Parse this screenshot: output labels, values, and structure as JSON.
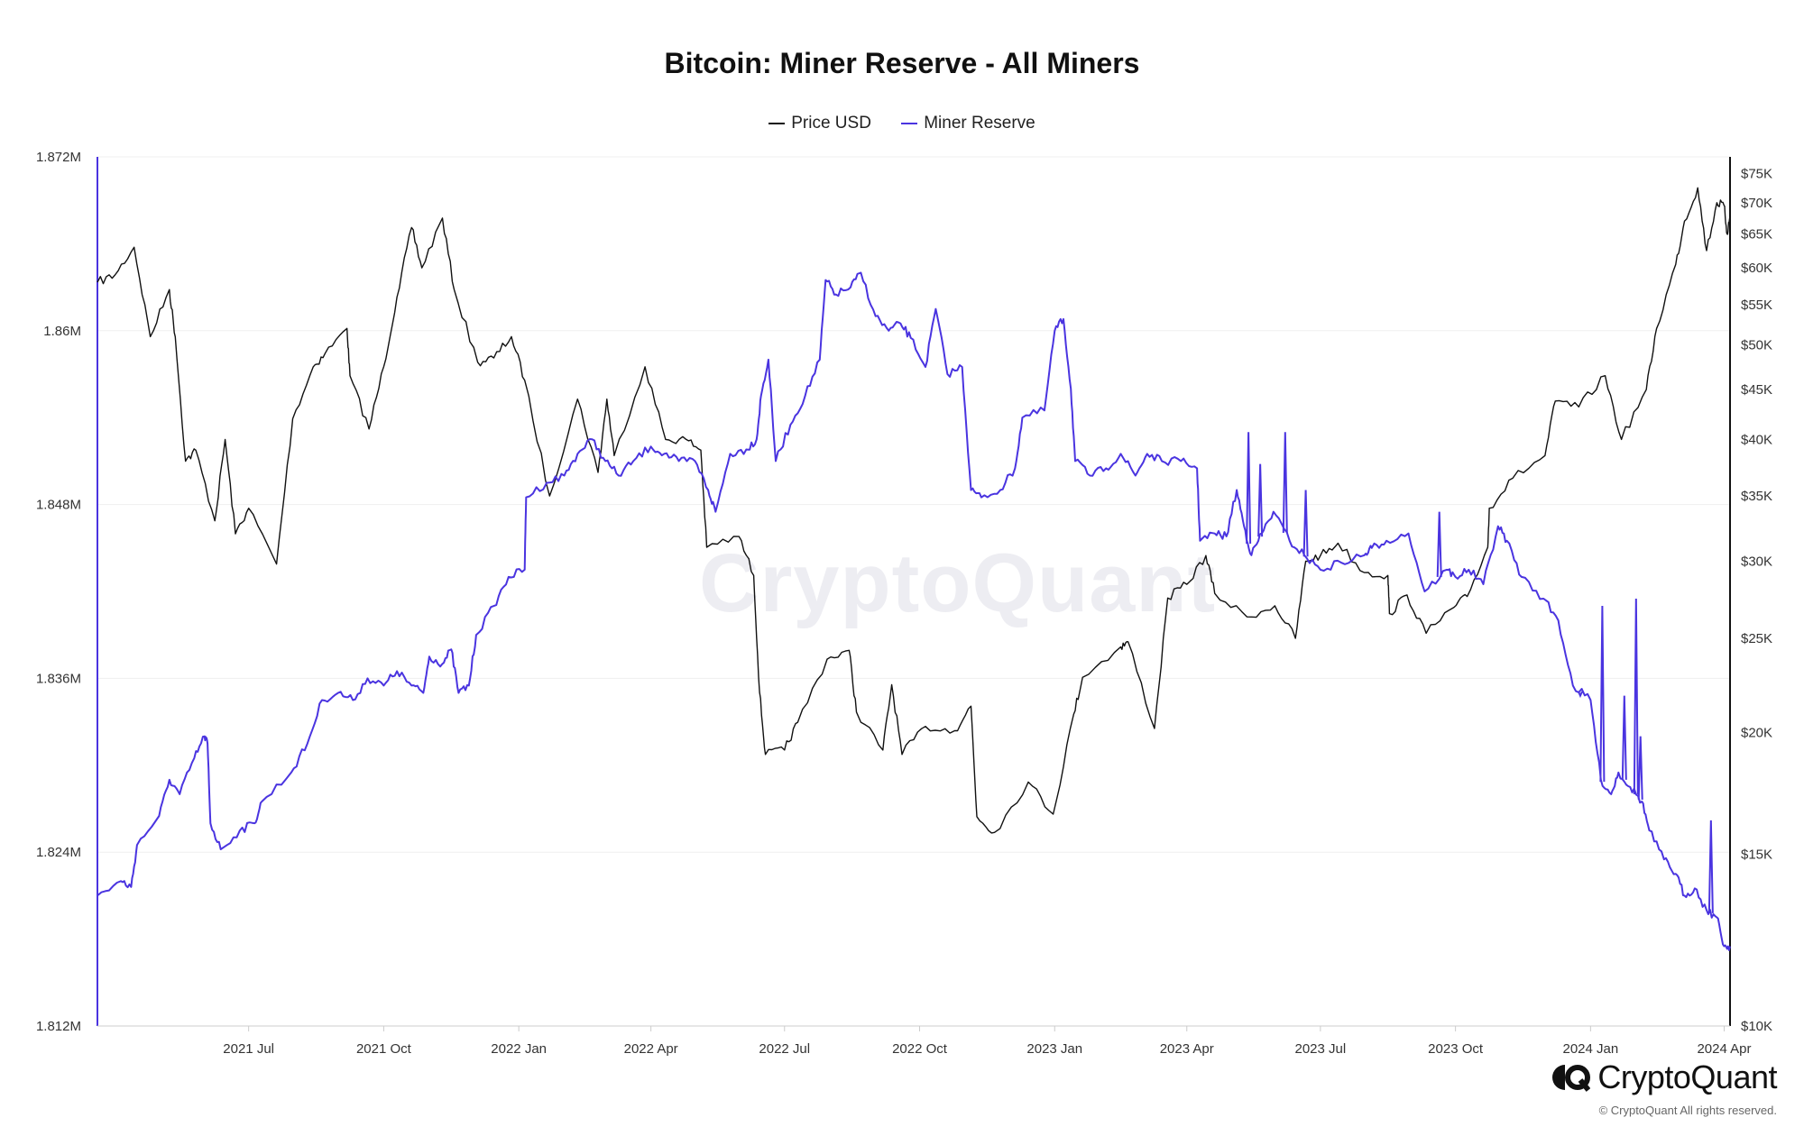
{
  "page": {
    "copyright": "© CryptoQuant All rights reserved."
  },
  "brand": {
    "name": "CryptoQuant",
    "watermark": "CryptoQuant"
  },
  "colors": {
    "price": "#111111",
    "reserve": "#4a34e0",
    "grid": "#efefef",
    "axis": "#cccccc"
  },
  "chart_data": {
    "type": "line",
    "title": "Bitcoin: Miner Reserve - All Miners",
    "legend": {
      "position": "top-center",
      "entries": [
        "Price USD",
        "Miner Reserve"
      ]
    },
    "grid": true,
    "x_axis": {
      "type": "date",
      "range": [
        "2021-03-20",
        "2024-04-05"
      ],
      "ticks": [
        "2021 Jul",
        "2021 Oct",
        "2022 Jan",
        "2022 Apr",
        "2022 Jul",
        "2022 Oct",
        "2023 Jan",
        "2023 Apr",
        "2023 Jul",
        "2023 Oct",
        "2024 Jan",
        "2024 Apr"
      ],
      "tick_dates": [
        "2021-07-01",
        "2021-10-01",
        "2022-01-01",
        "2022-04-01",
        "2022-07-01",
        "2022-10-01",
        "2023-01-01",
        "2023-04-01",
        "2023-07-01",
        "2023-10-01",
        "2024-01-01",
        "2024-04-01"
      ]
    },
    "y_left": {
      "label": "Miner Reserve",
      "range": [
        1812000,
        1872000
      ],
      "ticks": [
        1812000,
        1824000,
        1836000,
        1848000,
        1860000,
        1872000
      ],
      "tick_labels": [
        "1.812M",
        "1.824M",
        "1.836M",
        "1.848M",
        "1.86M",
        "1.872M"
      ]
    },
    "y_right": {
      "label": "Price USD",
      "scale": "log",
      "range": [
        10000,
        78000
      ],
      "ticks": [
        10000,
        15000,
        20000,
        25000,
        30000,
        35000,
        40000,
        45000,
        50000,
        55000,
        60000,
        65000,
        70000,
        75000
      ],
      "tick_labels": [
        "$10K",
        "$15K",
        "$20K",
        "$25K",
        "$30K",
        "$35K",
        "$40K",
        "$45K",
        "$50K",
        "$55K",
        "$60K",
        "$65K",
        "$70K",
        "$75K"
      ]
    },
    "series": [
      {
        "name": "Price USD",
        "axis": "right",
        "points": [
          [
            "2021-03-20",
            58000
          ],
          [
            "2021-04-01",
            59000
          ],
          [
            "2021-04-14",
            63000
          ],
          [
            "2021-04-25",
            51000
          ],
          [
            "2021-05-08",
            57000
          ],
          [
            "2021-05-12",
            51000
          ],
          [
            "2021-05-19",
            38000
          ],
          [
            "2021-05-26",
            39000
          ],
          [
            "2021-06-08",
            33000
          ],
          [
            "2021-06-15",
            40000
          ],
          [
            "2021-06-22",
            32000
          ],
          [
            "2021-07-01",
            34000
          ],
          [
            "2021-07-20",
            29800
          ],
          [
            "2021-07-31",
            42000
          ],
          [
            "2021-08-14",
            47500
          ],
          [
            "2021-08-22",
            49000
          ],
          [
            "2021-09-06",
            52000
          ],
          [
            "2021-09-08",
            46500
          ],
          [
            "2021-09-21",
            41000
          ],
          [
            "2021-10-01",
            47500
          ],
          [
            "2021-10-10",
            56000
          ],
          [
            "2021-10-20",
            66000
          ],
          [
            "2021-10-27",
            60000
          ],
          [
            "2021-11-10",
            67500
          ],
          [
            "2021-11-18",
            57000
          ],
          [
            "2021-12-04",
            48000
          ],
          [
            "2021-12-15",
            48500
          ],
          [
            "2021-12-27",
            51000
          ],
          [
            "2022-01-05",
            46000
          ],
          [
            "2022-01-22",
            35000
          ],
          [
            "2022-02-10",
            44000
          ],
          [
            "2022-02-24",
            37000
          ],
          [
            "2022-03-02",
            44000
          ],
          [
            "2022-03-07",
            38500
          ],
          [
            "2022-03-28",
            47500
          ],
          [
            "2022-04-11",
            40000
          ],
          [
            "2022-04-25",
            40000
          ],
          [
            "2022-05-05",
            39000
          ],
          [
            "2022-05-09",
            31000
          ],
          [
            "2022-05-31",
            31800
          ],
          [
            "2022-06-10",
            29000
          ],
          [
            "2022-06-14",
            22000
          ],
          [
            "2022-06-18",
            19000
          ],
          [
            "2022-07-01",
            19200
          ],
          [
            "2022-07-10",
            20500
          ],
          [
            "2022-07-30",
            23800
          ],
          [
            "2022-08-14",
            24300
          ],
          [
            "2022-08-19",
            21000
          ],
          [
            "2022-09-06",
            19200
          ],
          [
            "2022-09-12",
            22400
          ],
          [
            "2022-09-19",
            19000
          ],
          [
            "2022-10-05",
            20300
          ],
          [
            "2022-10-25",
            20100
          ],
          [
            "2022-11-05",
            21300
          ],
          [
            "2022-11-09",
            16400
          ],
          [
            "2022-11-21",
            15800
          ],
          [
            "2022-12-14",
            17800
          ],
          [
            "2022-12-31",
            16500
          ],
          [
            "2023-01-14",
            20900
          ],
          [
            "2023-01-20",
            22800
          ],
          [
            "2023-02-15",
            24500
          ],
          [
            "2023-02-20",
            24800
          ],
          [
            "2023-03-10",
            20200
          ],
          [
            "2023-03-19",
            27500
          ],
          [
            "2023-04-01",
            28400
          ],
          [
            "2023-04-14",
            30400
          ],
          [
            "2023-04-20",
            27800
          ],
          [
            "2023-05-12",
            26300
          ],
          [
            "2023-05-31",
            27000
          ],
          [
            "2023-06-14",
            25000
          ],
          [
            "2023-06-21",
            30000
          ],
          [
            "2023-07-01",
            30400
          ],
          [
            "2023-07-13",
            31300
          ],
          [
            "2023-07-31",
            29200
          ],
          [
            "2023-08-16",
            29000
          ],
          [
            "2023-08-17",
            26500
          ],
          [
            "2023-08-29",
            27700
          ],
          [
            "2023-09-11",
            25300
          ],
          [
            "2023-09-30",
            26900
          ],
          [
            "2023-10-09",
            27600
          ],
          [
            "2023-10-23",
            31000
          ],
          [
            "2023-10-24",
            34000
          ],
          [
            "2023-11-09",
            36500
          ],
          [
            "2023-12-01",
            38500
          ],
          [
            "2023-12-08",
            43800
          ],
          [
            "2023-12-24",
            43200
          ],
          [
            "2024-01-11",
            46500
          ],
          [
            "2024-01-22",
            40000
          ],
          [
            "2024-02-08",
            45000
          ],
          [
            "2024-02-15",
            52000
          ],
          [
            "2024-02-28",
            60500
          ],
          [
            "2024-03-05",
            67000
          ],
          [
            "2024-03-14",
            72500
          ],
          [
            "2024-03-20",
            62500
          ],
          [
            "2024-03-27",
            70000
          ],
          [
            "2024-04-01",
            69500
          ],
          [
            "2024-04-03",
            65000
          ],
          [
            "2024-04-05",
            67800
          ]
        ]
      },
      {
        "name": "Miner Reserve",
        "axis": "left",
        "points": [
          [
            "2021-03-20",
            1821000
          ],
          [
            "2021-04-05",
            1822000
          ],
          [
            "2021-04-12",
            1821600
          ],
          [
            "2021-04-16",
            1824500
          ],
          [
            "2021-05-01",
            1826500
          ],
          [
            "2021-05-08",
            1829000
          ],
          [
            "2021-05-15",
            1828000
          ],
          [
            "2021-05-25",
            1830500
          ],
          [
            "2021-06-01",
            1832000
          ],
          [
            "2021-06-03",
            1831500
          ],
          [
            "2021-06-05",
            1826000
          ],
          [
            "2021-06-12",
            1824200
          ],
          [
            "2021-06-25",
            1825500
          ],
          [
            "2021-07-05",
            1826000
          ],
          [
            "2021-07-10",
            1827500
          ],
          [
            "2021-07-30",
            1829500
          ],
          [
            "2021-08-10",
            1831500
          ],
          [
            "2021-08-20",
            1834500
          ],
          [
            "2021-08-31",
            1835000
          ],
          [
            "2021-09-10",
            1834500
          ],
          [
            "2021-09-20",
            1836000
          ],
          [
            "2021-10-01",
            1835500
          ],
          [
            "2021-10-10",
            1836500
          ],
          [
            "2021-10-20",
            1835500
          ],
          [
            "2021-10-28",
            1835000
          ],
          [
            "2021-11-01",
            1837500
          ],
          [
            "2021-11-10",
            1837000
          ],
          [
            "2021-11-16",
            1838000
          ],
          [
            "2021-11-21",
            1835000
          ],
          [
            "2021-11-28",
            1835500
          ],
          [
            "2021-12-03",
            1839000
          ],
          [
            "2021-12-15",
            1841000
          ],
          [
            "2021-12-25",
            1843000
          ],
          [
            "2022-01-05",
            1843500
          ],
          [
            "2022-01-06",
            1848500
          ],
          [
            "2022-01-20",
            1849500
          ],
          [
            "2022-02-01",
            1850000
          ],
          [
            "2022-02-10",
            1851500
          ],
          [
            "2022-02-20",
            1852500
          ],
          [
            "2022-03-01",
            1851000
          ],
          [
            "2022-03-10",
            1850000
          ],
          [
            "2022-03-20",
            1851000
          ],
          [
            "2022-04-01",
            1852000
          ],
          [
            "2022-04-10",
            1851500
          ],
          [
            "2022-04-20",
            1851000
          ],
          [
            "2022-05-01",
            1851000
          ],
          [
            "2022-05-10",
            1849000
          ],
          [
            "2022-05-15",
            1847500
          ],
          [
            "2022-05-25",
            1851500
          ],
          [
            "2022-06-05",
            1851800
          ],
          [
            "2022-06-12",
            1852500
          ],
          [
            "2022-06-15",
            1855500
          ],
          [
            "2022-06-20",
            1858000
          ],
          [
            "2022-06-25",
            1851000
          ],
          [
            "2022-07-05",
            1853500
          ],
          [
            "2022-07-15",
            1855500
          ],
          [
            "2022-07-25",
            1858000
          ],
          [
            "2022-07-29",
            1863500
          ],
          [
            "2022-08-05",
            1862500
          ],
          [
            "2022-08-15",
            1863000
          ],
          [
            "2022-08-22",
            1864000
          ],
          [
            "2022-09-01",
            1861000
          ],
          [
            "2022-09-10",
            1860000
          ],
          [
            "2022-09-18",
            1860500
          ],
          [
            "2022-09-25",
            1859500
          ],
          [
            "2022-10-05",
            1857500
          ],
          [
            "2022-10-12",
            1861500
          ],
          [
            "2022-10-20",
            1857000
          ],
          [
            "2022-10-30",
            1857500
          ],
          [
            "2022-11-05",
            1849000
          ],
          [
            "2022-11-12",
            1848500
          ],
          [
            "2022-11-25",
            1849000
          ],
          [
            "2022-12-05",
            1850500
          ],
          [
            "2022-12-10",
            1854000
          ],
          [
            "2022-12-25",
            1854500
          ],
          [
            "2023-01-01",
            1860000
          ],
          [
            "2023-01-07",
            1860800
          ],
          [
            "2023-01-12",
            1856000
          ],
          [
            "2023-01-15",
            1851000
          ],
          [
            "2023-01-25",
            1850000
          ],
          [
            "2023-02-05",
            1850500
          ],
          [
            "2023-02-15",
            1851500
          ],
          [
            "2023-02-25",
            1850000
          ],
          [
            "2023-03-05",
            1851500
          ],
          [
            "2023-03-15",
            1851000
          ],
          [
            "2023-03-28",
            1851000
          ],
          [
            "2023-04-08",
            1850500
          ],
          [
            "2023-04-10",
            1845500
          ],
          [
            "2023-04-20",
            1846000
          ],
          [
            "2023-04-28",
            1845800
          ],
          [
            "2023-05-05",
            1849000
          ],
          [
            "2023-05-10",
            1846500
          ],
          [
            "2023-05-15",
            1844500
          ],
          [
            "2023-05-22",
            1846000
          ],
          [
            "2023-05-30",
            1847500
          ],
          [
            "2023-06-10",
            1845500
          ],
          [
            "2023-06-20",
            1844500
          ],
          [
            "2023-07-01",
            1843500
          ],
          [
            "2023-07-15",
            1844000
          ],
          [
            "2023-07-31",
            1844500
          ],
          [
            "2023-08-05",
            1845000
          ],
          [
            "2023-08-15",
            1845500
          ],
          [
            "2023-08-30",
            1846000
          ],
          [
            "2023-09-10",
            1842000
          ],
          [
            "2023-09-25",
            1843500
          ],
          [
            "2023-10-01",
            1843000
          ],
          [
            "2023-10-10",
            1843500
          ],
          [
            "2023-10-20",
            1842500
          ],
          [
            "2023-10-30",
            1846500
          ],
          [
            "2023-11-05",
            1845500
          ],
          [
            "2023-11-15",
            1843000
          ],
          [
            "2023-11-30",
            1841500
          ],
          [
            "2023-12-10",
            1840000
          ],
          [
            "2023-12-20",
            1835500
          ],
          [
            "2024-01-01",
            1834500
          ],
          [
            "2024-01-08",
            1829000
          ],
          [
            "2024-01-15",
            1828000
          ],
          [
            "2024-01-20",
            1829500
          ],
          [
            "2024-01-28",
            1828500
          ],
          [
            "2024-02-05",
            1827500
          ],
          [
            "2024-02-10",
            1825500
          ],
          [
            "2024-02-20",
            1823500
          ],
          [
            "2024-02-28",
            1822500
          ],
          [
            "2024-03-05",
            1821000
          ],
          [
            "2024-03-12",
            1821500
          ],
          [
            "2024-03-20",
            1820000
          ],
          [
            "2024-03-27",
            1819500
          ],
          [
            "2024-04-01",
            1817500
          ],
          [
            "2024-04-05",
            1817500
          ]
        ],
        "spikes": [
          [
            "2023-05-13",
            1853000
          ],
          [
            "2023-05-21",
            1850800
          ],
          [
            "2023-06-07",
            1853000
          ],
          [
            "2023-06-21",
            1849000
          ],
          [
            "2023-09-20",
            1847500
          ],
          [
            "2023-12-25",
            1834800
          ],
          [
            "2024-01-09",
            1841000
          ],
          [
            "2024-01-24",
            1834800
          ],
          [
            "2024-02-01",
            1841500
          ],
          [
            "2024-02-04",
            1832000
          ],
          [
            "2024-03-23",
            1826200
          ]
        ]
      }
    ]
  }
}
